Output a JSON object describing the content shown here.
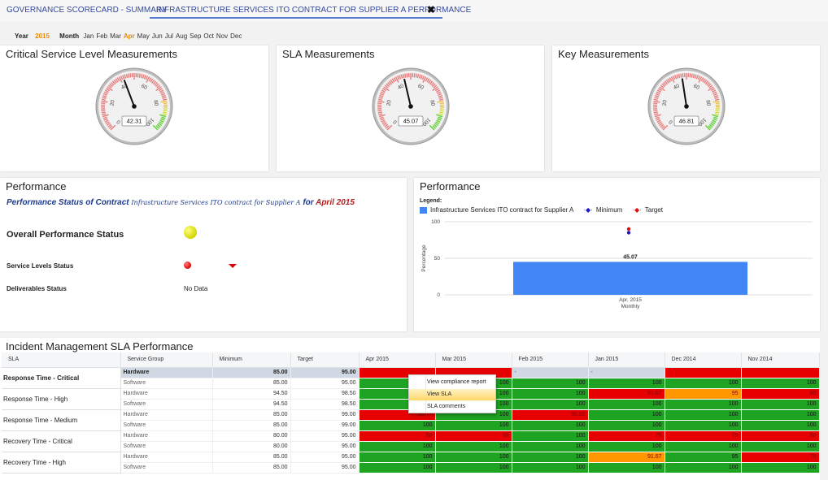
{
  "tabs": [
    {
      "label": "GOVERNANCE SCORECARD - SUMMARY",
      "active": false
    },
    {
      "label": "INFRASTRUCTURE SERVICES ITO CONTRACT FOR SUPPLIER A PERFORMANCE",
      "active": true
    }
  ],
  "close_glyph": "✖",
  "date": {
    "year_label": "Year",
    "year": "2015",
    "month_label": "Month",
    "months": [
      "Jan",
      "Feb",
      "Mar",
      "Apr",
      "May",
      "Jun",
      "Jul",
      "Aug",
      "Sep",
      "Oct",
      "Nov",
      "Dec"
    ],
    "selected_month": "Apr"
  },
  "gauges": [
    {
      "title": "Critical Service Level Measurements",
      "value": "42.31",
      "value_num": 42.31
    },
    {
      "title": "SLA Measurements",
      "value": "45.07",
      "value_num": 45.07
    },
    {
      "title": "Key Measurements",
      "value": "46.81",
      "value_num": 46.81
    }
  ],
  "gauge_ticks": [
    "0",
    "20",
    "40",
    "60",
    "80",
    "100"
  ],
  "performance": {
    "title": "Performance",
    "subtitle_a": "Performance Status of Contract ",
    "subtitle_b": "Infrastructure Services ITO contract for Supplier A",
    "subtitle_c": " for ",
    "subtitle_d": "April 2015",
    "overall_label": "Overall Performance Status",
    "service_levels_label": "Service Levels Status",
    "deliverables_label": "Deliverables Status",
    "deliverables_value": "No Data",
    "colors": {
      "overall": "#d4d400",
      "service_levels": "#dd0000"
    }
  },
  "perf_chart": {
    "title": "Performance",
    "legend_title": "Legend:",
    "legend": [
      {
        "label": "Infrastructure Services ITO contract for Supplier A",
        "color": "#4285f4"
      },
      {
        "label": "Minimum",
        "color": "#1a1ac8"
      },
      {
        "label": "Target",
        "color": "#dd1111"
      }
    ]
  },
  "chart_data": {
    "type": "bar",
    "categories": [
      "Apr, 2015"
    ],
    "values": [
      45.07
    ],
    "value_labels": [
      "45.07"
    ],
    "ylabel": "Percentage",
    "xlabel": "Monthly",
    "ylim": [
      0,
      100
    ],
    "yticks": [
      "0",
      "50",
      "100"
    ],
    "markers": {
      "minimum": 85,
      "target": 90
    },
    "grid": true
  },
  "incident": {
    "title": "Incident Management SLA Performance",
    "headers": [
      "SLA",
      "Service Group",
      "Minimum",
      "Target",
      "Apr 2015",
      "Mar 2015",
      "Feb 2015",
      "Jan 2015",
      "Dec 2014",
      "Nov 2014"
    ],
    "groups": [
      {
        "sla": "Response Time - Critical",
        "bold": true,
        "rows": [
          {
            "group": "Hardware",
            "min": "85.00",
            "target": "95.00",
            "highlight": true,
            "cells": [
              {
                "v": "",
                "c": "r"
              },
              {
                "v": "",
                "c": "r"
              },
              {
                "v": "-",
                "c": "e"
              },
              {
                "v": "-",
                "c": "e"
              },
              {
                "v": "",
                "c": "r"
              },
              {
                "v": "",
                "c": "r"
              }
            ]
          },
          {
            "group": "Software",
            "min": "85.00",
            "target": "95.00",
            "cells": [
              {
                "v": "100",
                "c": "g"
              },
              {
                "v": "100",
                "c": "g"
              },
              {
                "v": "100",
                "c": "g"
              },
              {
                "v": "100",
                "c": "g"
              },
              {
                "v": "100",
                "c": "g"
              },
              {
                "v": "100",
                "c": "g"
              }
            ]
          }
        ]
      },
      {
        "sla": "Response Time - High",
        "rows": [
          {
            "group": "Hardware",
            "min": "94.50",
            "target": "98.50",
            "cells": [
              {
                "v": "100",
                "c": "g"
              },
              {
                "v": "100",
                "c": "g"
              },
              {
                "v": "100",
                "c": "g"
              },
              {
                "v": "91.67",
                "c": "r"
              },
              {
                "v": "95",
                "c": "o"
              },
              {
                "v": "90",
                "c": "r"
              }
            ]
          },
          {
            "group": "Software",
            "min": "94.50",
            "target": "98.50",
            "cells": [
              {
                "v": "100",
                "c": "g"
              },
              {
                "v": "100",
                "c": "g"
              },
              {
                "v": "100",
                "c": "g"
              },
              {
                "v": "100",
                "c": "g"
              },
              {
                "v": "100",
                "c": "g"
              },
              {
                "v": "100",
                "c": "g"
              }
            ]
          }
        ]
      },
      {
        "sla": "Response Time - Medium",
        "rows": [
          {
            "group": "Hardware",
            "min": "85.00",
            "target": "99.00",
            "cells": [
              {
                "v": "80.77",
                "c": "r"
              },
              {
                "v": "100",
                "c": "g"
              },
              {
                "v": "96.00",
                "c": "r"
              },
              {
                "v": "100",
                "c": "g"
              },
              {
                "v": "100",
                "c": "g"
              },
              {
                "v": "100",
                "c": "g"
              }
            ]
          },
          {
            "group": "Software",
            "min": "85.00",
            "target": "99.00",
            "cells": [
              {
                "v": "100",
                "c": "g"
              },
              {
                "v": "100",
                "c": "g"
              },
              {
                "v": "100",
                "c": "g"
              },
              {
                "v": "100",
                "c": "g"
              },
              {
                "v": "100",
                "c": "g"
              },
              {
                "v": "100",
                "c": "g"
              }
            ]
          }
        ]
      },
      {
        "sla": "Recovery Time - Critical",
        "rows": [
          {
            "group": "Hardware",
            "min": "80.00",
            "target": "95.00",
            "cells": [
              {
                "v": "50",
                "c": "r"
              },
              {
                "v": "50",
                "c": "r"
              },
              {
                "v": "100",
                "c": "g"
              },
              {
                "v": "75",
                "c": "r"
              },
              {
                "v": "75",
                "c": "r"
              },
              {
                "v": "50",
                "c": "r"
              }
            ]
          },
          {
            "group": "Software",
            "min": "80.00",
            "target": "95.00",
            "cells": [
              {
                "v": "100",
                "c": "g"
              },
              {
                "v": "100",
                "c": "g"
              },
              {
                "v": "100",
                "c": "g"
              },
              {
                "v": "100",
                "c": "g"
              },
              {
                "v": "100",
                "c": "g"
              },
              {
                "v": "100",
                "c": "g"
              }
            ]
          }
        ]
      },
      {
        "sla": "Recovery Time - High",
        "rows": [
          {
            "group": "Hardware",
            "min": "85.00",
            "target": "95.00",
            "cells": [
              {
                "v": "100",
                "c": "g"
              },
              {
                "v": "100",
                "c": "g"
              },
              {
                "v": "100",
                "c": "g"
              },
              {
                "v": "91.67",
                "c": "o"
              },
              {
                "v": "95",
                "c": "g"
              },
              {
                "v": "75",
                "c": "r"
              }
            ]
          },
          {
            "group": "Software",
            "min": "85.00",
            "target": "95.00",
            "cells": [
              {
                "v": "100",
                "c": "g"
              },
              {
                "v": "100",
                "c": "g"
              },
              {
                "v": "100",
                "c": "g"
              },
              {
                "v": "100",
                "c": "g"
              },
              {
                "v": "100",
                "c": "g"
              },
              {
                "v": "100",
                "c": "g"
              }
            ]
          }
        ]
      }
    ]
  },
  "context_menu": {
    "items": [
      {
        "label": "View compliance report"
      },
      {
        "label": "View SLA",
        "highlighted": true
      },
      {
        "label": "SLA comments"
      }
    ]
  }
}
